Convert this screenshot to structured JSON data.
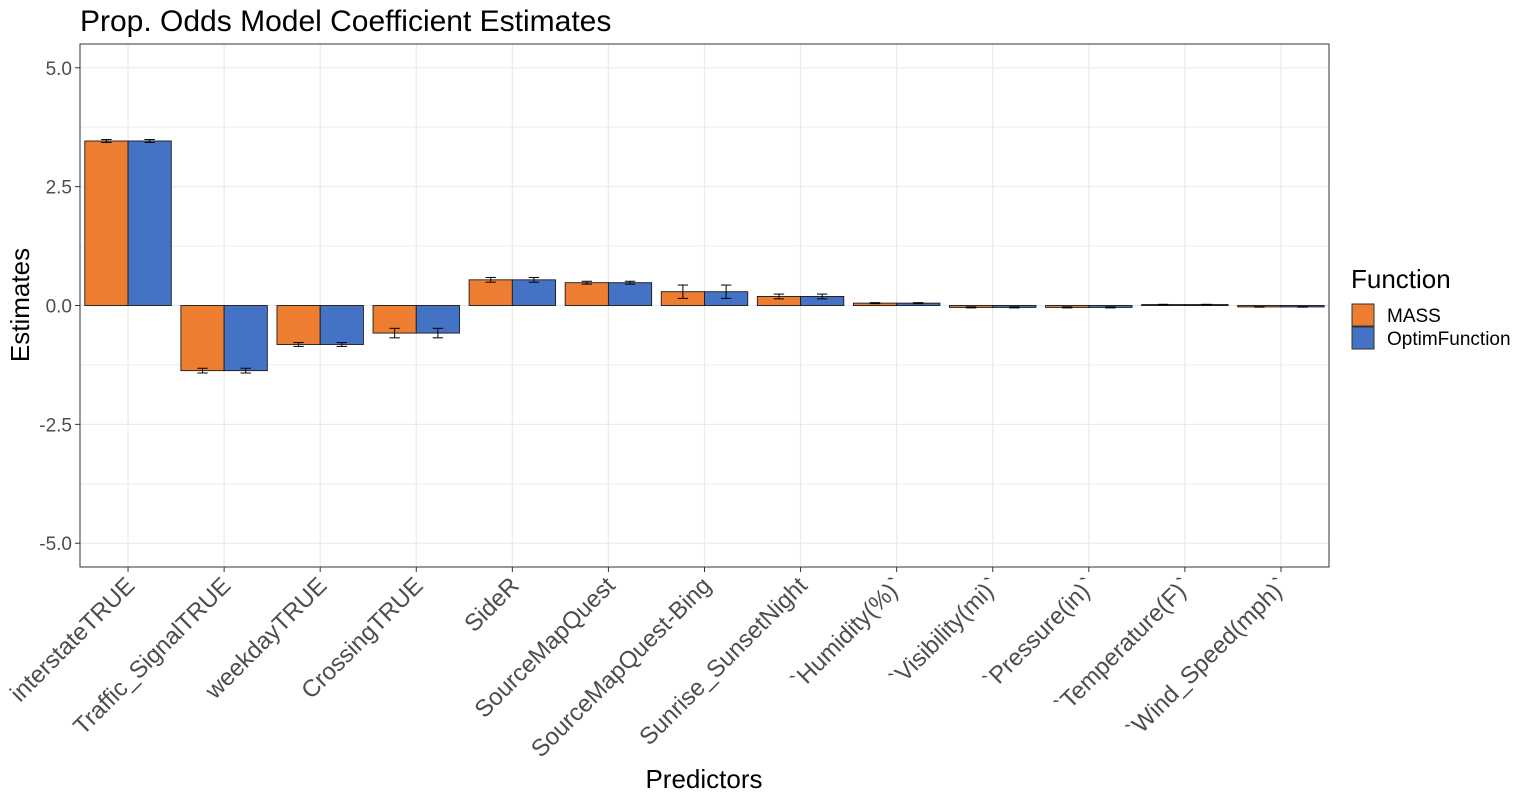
{
  "chart_data": {
    "type": "bar",
    "title": "Prop. Odds Model Coefficient Estimates",
    "xlabel": "Predictors",
    "ylabel": "Estimates",
    "ylim": [
      -5.5,
      5.5
    ],
    "yticks": [
      "-5.0",
      "-2.5",
      "0.0",
      "2.5",
      "5.0"
    ],
    "grid": true,
    "legend_position": "right",
    "legend_title": "Function",
    "categories": [
      "interstateTRUE",
      "Traffic_SignalTRUE",
      "weekdayTRUE",
      "CrossingTRUE",
      "SideR",
      "SourceMapQuest",
      "SourceMapQuest-Bing",
      "Sunrise_SunsetNight",
      "`Humidity(%)`",
      "`Visibility(mi)`",
      "`Pressure(in)`",
      "`Temperature(F)`",
      "`Wind_Speed(mph)`"
    ],
    "series": [
      {
        "name": "MASS",
        "color": "#ED7D31",
        "values": [
          3.46,
          -1.37,
          -0.82,
          -0.58,
          0.54,
          0.48,
          0.29,
          0.19,
          0.05,
          -0.04,
          -0.04,
          0.02,
          -0.03
        ],
        "errors": [
          0.03,
          0.05,
          0.04,
          0.1,
          0.05,
          0.03,
          0.14,
          0.05,
          0.01,
          0.01,
          0.01,
          0.005,
          0.005
        ]
      },
      {
        "name": "OptimFunction",
        "color": "#4472C4",
        "values": [
          3.46,
          -1.37,
          -0.82,
          -0.58,
          0.54,
          0.48,
          0.29,
          0.19,
          0.05,
          -0.04,
          -0.04,
          0.02,
          -0.03
        ],
        "errors": [
          0.03,
          0.05,
          0.04,
          0.1,
          0.05,
          0.03,
          0.14,
          0.05,
          0.01,
          0.01,
          0.01,
          0.005,
          0.005
        ]
      }
    ]
  }
}
